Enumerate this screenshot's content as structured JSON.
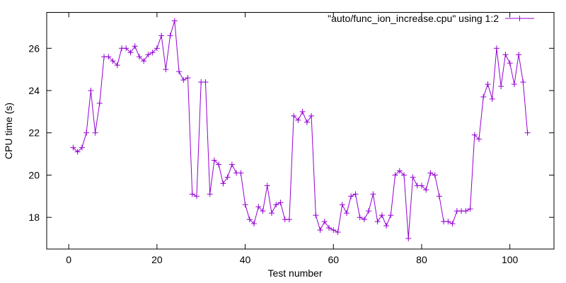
{
  "chart_data": {
    "type": "line",
    "title": "",
    "xlabel": "Test number",
    "ylabel": "CPU time (s)",
    "xlim": [
      -5,
      110
    ],
    "ylim": [
      16.5,
      27.7
    ],
    "xticks": [
      0,
      20,
      40,
      60,
      80,
      100
    ],
    "yticks": [
      18,
      20,
      22,
      24,
      26
    ],
    "grid": false,
    "legend_position": "top-right",
    "series": [
      {
        "name": "\"auto/func_ion_increase.cpu\" using 1:2",
        "color": "#9400d3",
        "marker": "plus",
        "x": [
          1,
          2,
          3,
          4,
          5,
          6,
          7,
          8,
          9,
          10,
          11,
          12,
          13,
          14,
          15,
          16,
          17,
          18,
          19,
          20,
          21,
          22,
          23,
          24,
          25,
          26,
          27,
          28,
          29,
          30,
          31,
          32,
          33,
          34,
          35,
          36,
          37,
          38,
          39,
          40,
          41,
          42,
          43,
          44,
          45,
          46,
          47,
          48,
          49,
          50,
          51,
          52,
          53,
          54,
          55,
          56,
          57,
          58,
          59,
          60,
          61,
          62,
          63,
          64,
          65,
          66,
          67,
          68,
          69,
          70,
          71,
          72,
          73,
          74,
          75,
          76,
          77,
          78,
          79,
          80,
          81,
          82,
          83,
          84,
          85,
          86,
          87,
          88,
          89,
          90,
          91,
          92,
          93,
          94,
          95,
          96,
          97,
          98,
          99,
          100,
          101,
          102,
          103,
          104
        ],
        "y": [
          21.3,
          21.1,
          21.3,
          22.0,
          24.0,
          22.0,
          23.4,
          25.6,
          25.6,
          25.4,
          25.2,
          26.0,
          26.0,
          25.8,
          26.1,
          25.6,
          25.4,
          25.7,
          25.8,
          26.0,
          26.6,
          25.0,
          26.6,
          27.3,
          24.9,
          24.5,
          24.6,
          19.1,
          19.0,
          24.4,
          24.4,
          19.1,
          20.7,
          20.5,
          19.6,
          19.9,
          20.5,
          20.1,
          20.1,
          18.6,
          17.9,
          17.7,
          18.5,
          18.3,
          19.5,
          18.2,
          18.6,
          18.7,
          17.9,
          17.9,
          22.8,
          22.6,
          23.0,
          22.5,
          22.8,
          18.1,
          17.4,
          17.8,
          17.5,
          17.4,
          17.3,
          18.6,
          18.2,
          19.0,
          19.1,
          18.0,
          17.9,
          18.3,
          19.1,
          17.8,
          18.1,
          17.6,
          18.1,
          20.0,
          20.2,
          20.0,
          17.0,
          19.9,
          19.5,
          19.5,
          19.3,
          20.1,
          20.0,
          19.0,
          17.8,
          17.8,
          17.7,
          18.3,
          18.3,
          18.3,
          18.4,
          21.9,
          21.7,
          23.7,
          24.3,
          23.6,
          26.0,
          24.2,
          25.7,
          25.3,
          24.3,
          25.7,
          24.4,
          22.0
        ]
      }
    ]
  }
}
